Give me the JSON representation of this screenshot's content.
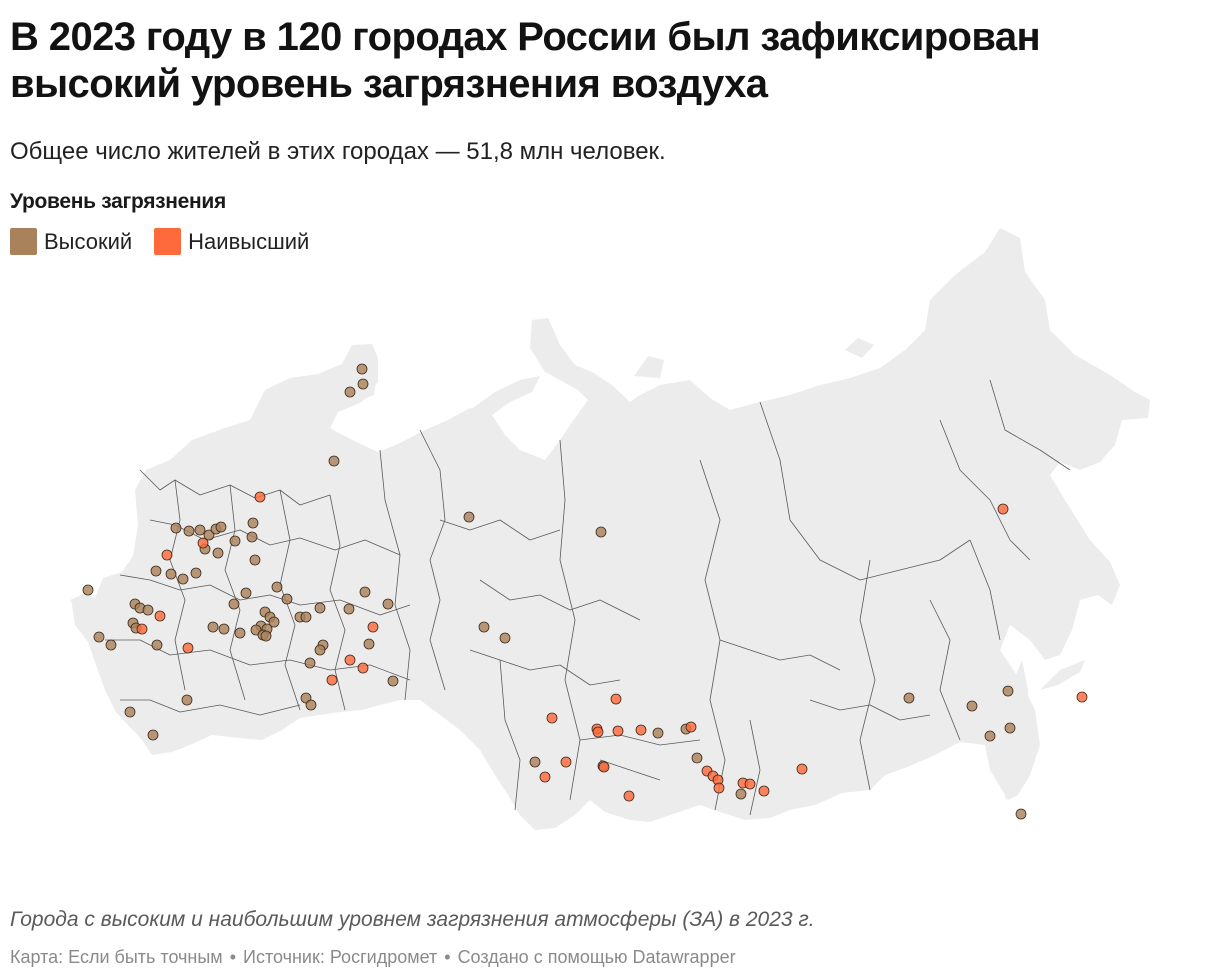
{
  "header": {
    "title": "В 2023 году в 120 городах России был зафиксирован высокий уровень загрязнения воздуха",
    "subtitle": "Общее число жителей в этих городах — 51,8 млн человек."
  },
  "legend": {
    "title": "Уровень загрязнения",
    "items": [
      {
        "label": "Высокий",
        "color": "#a9825c"
      },
      {
        "label": "Наивысший",
        "color": "#ff6a3d"
      }
    ]
  },
  "map": {
    "land_color": "#ececec",
    "border_color": "#5a5a5a"
  },
  "footer": {
    "caption": "Города с высоким и наибольшим уровнем загрязнения атмосферы (ЗА) в 2023 г.",
    "credit_map": "Карта: Если быть точным",
    "credit_source": "Источник: Росгидромет",
    "credit_tool": "Создано с помощью Datawrapper",
    "separator": "•"
  }
}
